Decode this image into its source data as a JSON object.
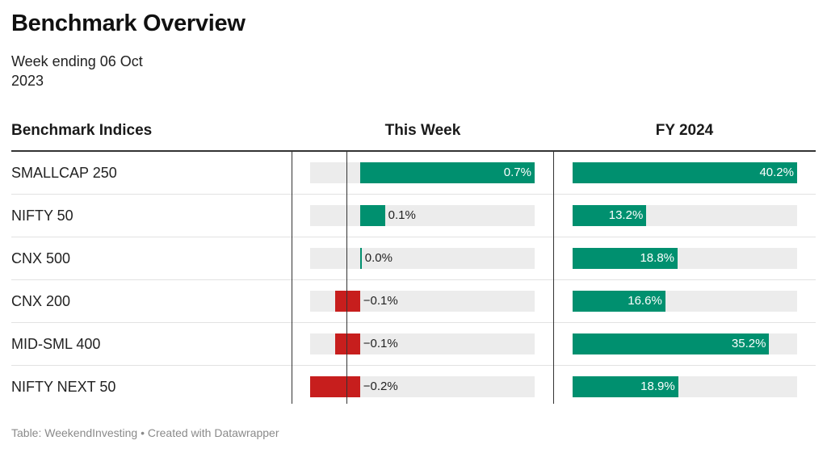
{
  "header": {
    "title": "Benchmark Overview",
    "subtitle": "Week ending 06 Oct\n 2023"
  },
  "columns": {
    "name": "Benchmark Indices",
    "week": "This Week",
    "fy": "FY 2024"
  },
  "colors": {
    "positive": "#00906f",
    "negative": "#c71e1d",
    "track": "#ececec"
  },
  "rows": [
    {
      "name": "SMALLCAP 250",
      "week_label": "0.7%",
      "fy_label": "40.2%"
    },
    {
      "name": "NIFTY 50",
      "week_label": "0.1%",
      "fy_label": "13.2%"
    },
    {
      "name": "CNX 500",
      "week_label": "0.0%",
      "fy_label": "18.8%"
    },
    {
      "name": "CNX 200",
      "week_label": "−0.1%",
      "fy_label": "16.6%"
    },
    {
      "name": "MID-SML 400",
      "week_label": "−0.1%",
      "fy_label": "35.2%"
    },
    {
      "name": "NIFTY NEXT 50",
      "week_label": "−0.2%",
      "fy_label": "18.9%"
    }
  ],
  "chart_data": {
    "type": "bar",
    "categories": [
      "SMALLCAP 250",
      "NIFTY 50",
      "CNX 500",
      "CNX 200",
      "MID-SML 400",
      "NIFTY NEXT 50"
    ],
    "series": [
      {
        "name": "This Week",
        "values": [
          0.7,
          0.1,
          0.0,
          -0.1,
          -0.1,
          -0.2
        ],
        "range": [
          -0.2,
          0.7
        ]
      },
      {
        "name": "FY 2024",
        "values": [
          40.2,
          13.2,
          18.8,
          16.6,
          35.2,
          18.9
        ],
        "range": [
          0,
          40.2
        ]
      }
    ],
    "unit": "%",
    "grid": false
  },
  "footer": {
    "text": "Table: WeekendInvesting • Created with Datawrapper"
  }
}
